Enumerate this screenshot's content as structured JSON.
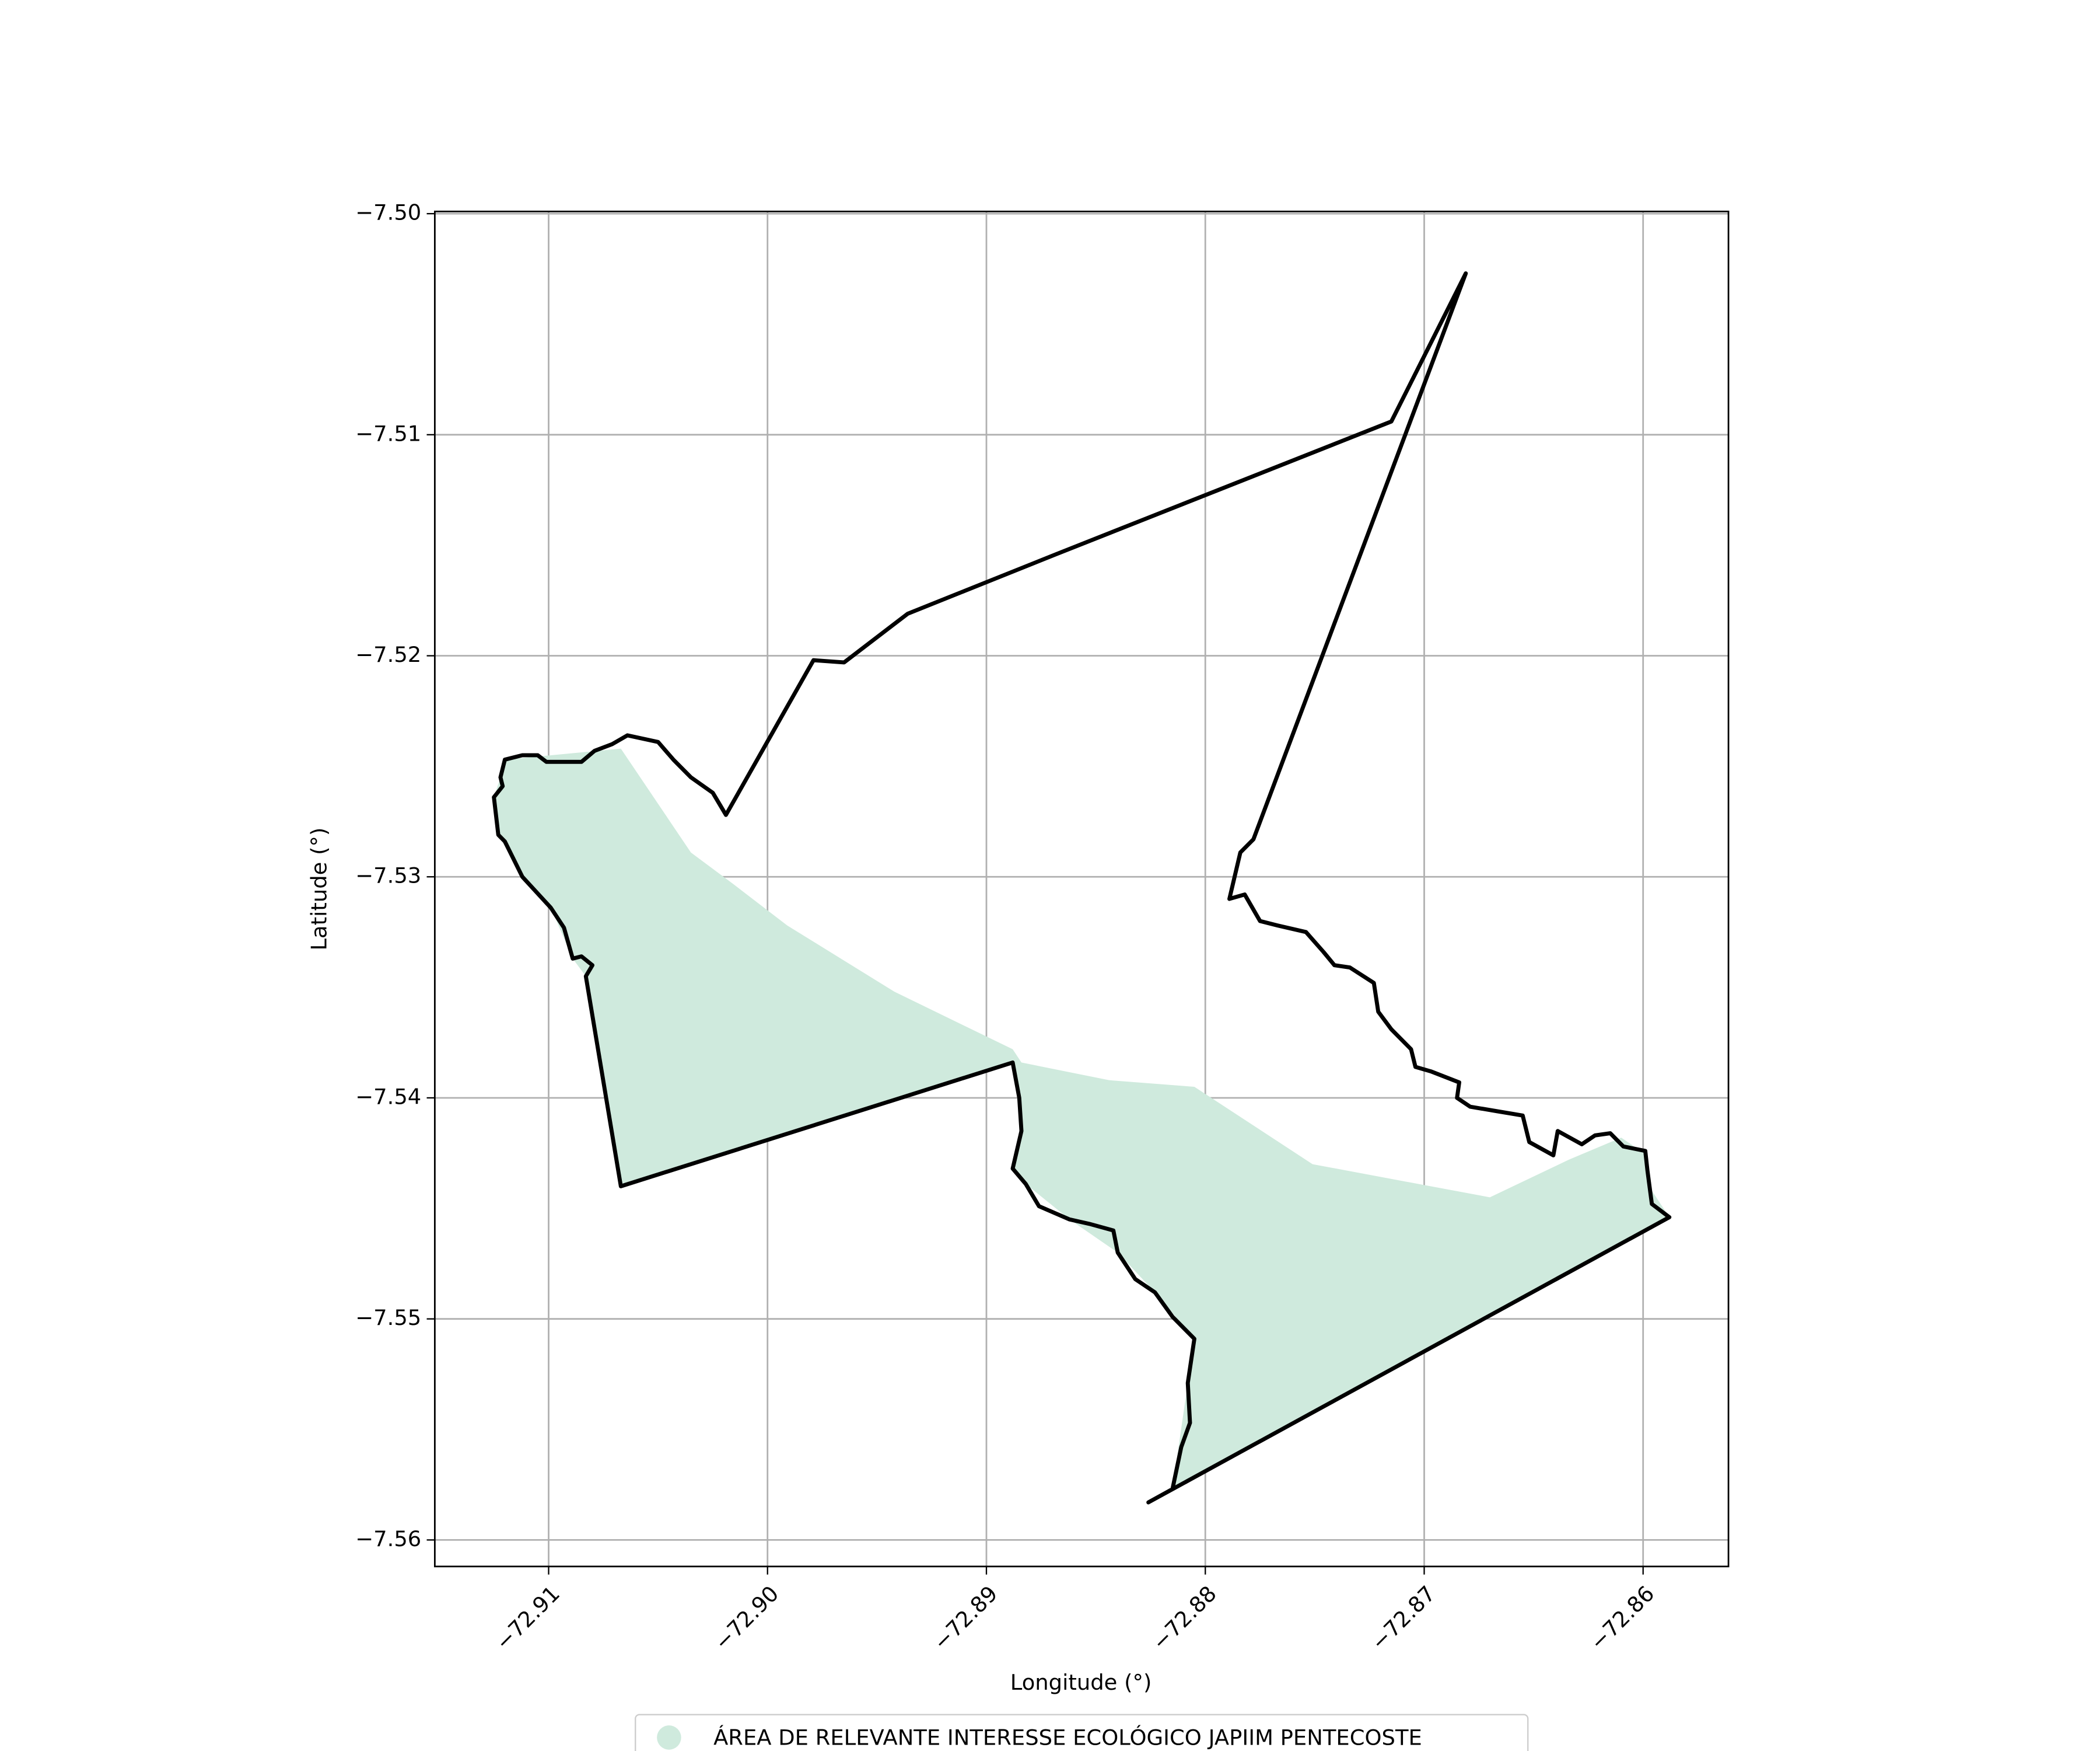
{
  "chart_data": {
    "type": "map",
    "xlabel": "Longitude (°)",
    "ylabel": "Latitude (°)",
    "xlim": [
      -72.9152,
      -72.8561
    ],
    "ylim": [
      -7.5612,
      -7.4999
    ],
    "xticks": [
      {
        "value": -72.91,
        "label": "−72.91"
      },
      {
        "value": -72.9,
        "label": "−72.90"
      },
      {
        "value": -72.89,
        "label": "−72.89"
      },
      {
        "value": -72.88,
        "label": "−72.88"
      },
      {
        "value": -72.87,
        "label": "−72.87"
      },
      {
        "value": -72.86,
        "label": "−72.86"
      }
    ],
    "yticks": [
      {
        "value": -7.5,
        "label": "−7.50"
      },
      {
        "value": -7.51,
        "label": "−7.51"
      },
      {
        "value": -7.52,
        "label": "−7.52"
      },
      {
        "value": -7.53,
        "label": "−7.53"
      },
      {
        "value": -7.54,
        "label": "−7.54"
      },
      {
        "value": -7.55,
        "label": "−7.55"
      },
      {
        "value": -7.56,
        "label": "−7.56"
      }
    ],
    "grid": true,
    "legend": "lower center",
    "series": [
      {
        "name": "ÁREA DE RELEVANTE INTERESSE ECOLÓGICO JAPIIM PENTECOSTE",
        "color": "#cfeadd",
        "x": [
          -72.912,
          -72.9067,
          -72.9035,
          -72.9016,
          -72.8991,
          -72.8942,
          -72.8888,
          -72.8884,
          -72.8844,
          -72.8805,
          -72.8751,
          -72.867,
          -72.8634,
          -72.861,
          -72.8598,
          -72.8598,
          -72.8588,
          -72.8815,
          -72.8808,
          -72.8805,
          -72.8823,
          -72.884,
          -72.8862,
          -72.8882,
          -72.8888,
          -72.8884,
          -72.8885,
          -72.8888,
          -72.9067,
          -72.9083,
          -72.9089,
          -72.9099,
          -72.9112,
          -72.9123,
          -72.9125,
          -72.9122
        ],
        "y": [
          -7.5247,
          -7.5242,
          -7.5289,
          -7.5303,
          -7.5322,
          -7.5352,
          -7.5378,
          -7.5384,
          -7.5392,
          -7.5395,
          -7.543,
          -7.5445,
          -7.5428,
          -7.5418,
          -7.5426,
          -7.5439,
          -7.5454,
          -7.5577,
          -7.5529,
          -7.5509,
          -7.5488,
          -7.547,
          -7.5455,
          -7.5439,
          -7.5432,
          -7.5415,
          -7.54,
          -7.5384,
          -7.544,
          -7.5345,
          -7.5337,
          -7.5314,
          -7.53,
          -7.5281,
          -7.5264,
          -7.5255
        ]
      }
    ],
    "boundary": {
      "color": "#000000",
      "x": [
        -72.9105,
        -72.9112,
        -72.912,
        -72.9122,
        -72.9121,
        -72.9125,
        -72.9123,
        -72.912,
        -72.9112,
        -72.9099,
        -72.9093,
        -72.9089,
        -72.9085,
        -72.908,
        -72.9083,
        -72.9067,
        -72.8888,
        -72.8885,
        -72.8884,
        -72.8888,
        -72.8882,
        -72.8876,
        -72.8862,
        -72.8853,
        -72.8842,
        -72.884,
        -72.8832,
        -72.8823,
        -72.8815,
        -72.8805,
        -72.8808,
        -72.8807,
        -72.8811,
        -72.8815,
        -72.8826,
        -72.8588,
        -72.8596,
        -72.8598,
        -72.8599,
        -72.8609,
        -72.8615,
        -72.8622,
        -72.8628,
        -72.8639,
        -72.8641,
        -72.8652,
        -72.8655,
        -72.8667,
        -72.8679,
        -72.8685,
        -72.8684,
        -72.8697,
        -72.8704,
        -72.8706,
        -72.8715,
        -72.8721,
        -72.8723,
        -72.8734,
        -72.8741,
        -72.8746,
        -72.8754,
        -72.8767,
        -72.8775,
        -72.8782,
        -72.8789,
        -72.8784,
        -72.8778,
        -72.8681,
        -72.8715,
        -72.8868,
        -72.8936,
        -72.8965,
        -72.8979,
        -72.9019,
        -72.9025,
        -72.9035,
        -72.9043,
        -72.905,
        -72.9064,
        -72.9071,
        -72.9079,
        -72.9085,
        -72.9101
      ],
      "y": [
        -7.5245,
        -7.5245,
        -7.5247,
        -7.5255,
        -7.5259,
        -7.5264,
        -7.5281,
        -7.5284,
        -7.53,
        -7.5314,
        -7.5323,
        -7.5337,
        -7.5336,
        -7.534,
        -7.5345,
        -7.544,
        -7.5384,
        -7.54,
        -7.5415,
        -7.5432,
        -7.5439,
        -7.5449,
        -7.5455,
        -7.5457,
        -7.546,
        -7.547,
        -7.5482,
        -7.5488,
        -7.5499,
        -7.5509,
        -7.5529,
        -7.5547,
        -7.5558,
        -7.5577,
        -7.5583,
        -7.5454,
        -7.5448,
        -7.5433,
        -7.5424,
        -7.5422,
        -7.5416,
        -7.5417,
        -7.5421,
        -7.5415,
        -7.5426,
        -7.542,
        -7.5408,
        -7.5406,
        -7.5404,
        -7.54,
        -7.5393,
        -7.5388,
        -7.5386,
        -7.5378,
        -7.5369,
        -7.5361,
        -7.5348,
        -7.5341,
        -7.534,
        -7.5334,
        -7.5325,
        -7.5322,
        -7.532,
        -7.5308,
        -7.531,
        -7.5289,
        -7.5283,
        -7.5027,
        -7.5094,
        -7.5154,
        -7.5181,
        -7.5203,
        -7.5202,
        -7.5272,
        -7.5262,
        -7.5255,
        -7.5247,
        -7.5239,
        -7.5236,
        -7.524,
        -7.5243,
        -7.5248,
        -7.5248
      ]
    }
  }
}
